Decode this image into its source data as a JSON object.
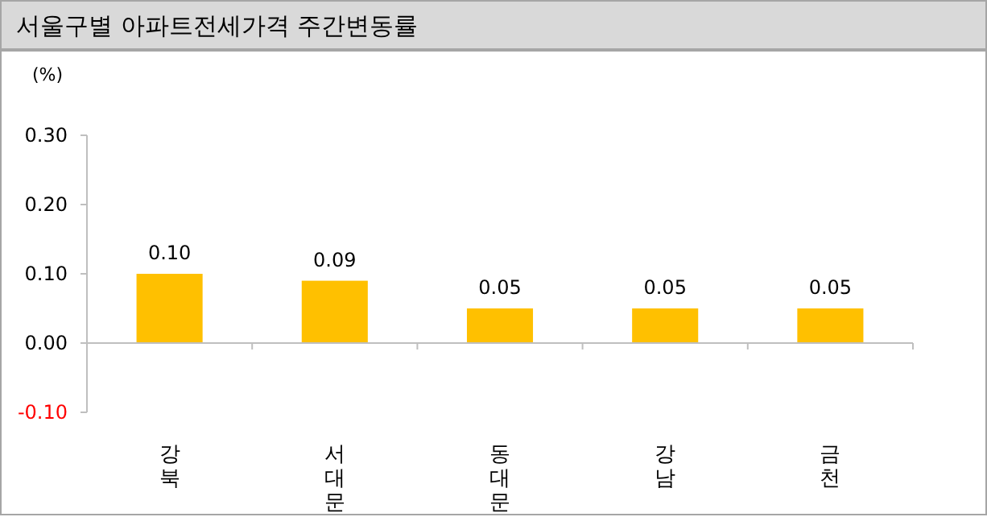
{
  "chart_data": {
    "type": "bar",
    "title": "서울구별 아파트전세가격 주간변동률",
    "ylabel": "(%)",
    "categories": [
      "강북",
      "서대문",
      "동대문",
      "강남",
      "금천"
    ],
    "values": [
      0.1,
      0.09,
      0.05,
      0.05,
      0.05
    ],
    "value_labels": [
      "0.10",
      "0.09",
      "0.05",
      "0.05",
      "0.05"
    ],
    "color": "#ffc000",
    "ylim": [
      -0.1,
      0.3
    ],
    "yticks": [
      {
        "value": -0.1,
        "label": "-0.10"
      },
      {
        "value": 0,
        "label": "0.00"
      },
      {
        "value": 0.1,
        "label": "0.10"
      },
      {
        "value": 0.2,
        "label": "0.20"
      },
      {
        "value": 0.3,
        "label": "0.30"
      }
    ]
  }
}
